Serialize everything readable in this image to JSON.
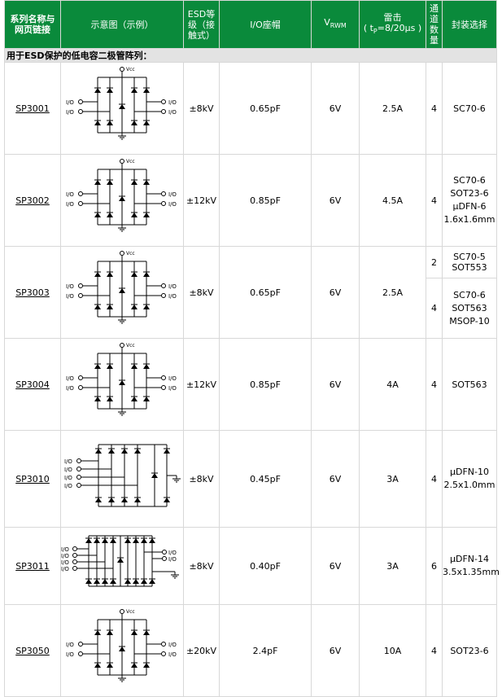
{
  "headers": {
    "series_line1": "系列名称与",
    "series_line2": "网页链接",
    "diagram": "示意图（示例）",
    "esd_line1": "ESD等",
    "esd_line2": "级（接",
    "esd_line3": "触式）",
    "io_cap": "I/O座帽",
    "vrwm_v": "V",
    "vrwm_sub": "RWM",
    "surge_line1": "雷击",
    "surge_line2_pre": "( t",
    "surge_line2_sub": "P",
    "surge_line2_post": "=8/20µs )",
    "channels_line1": "通",
    "channels_line2": "道",
    "channels_line3": "数",
    "channels_line4": "量",
    "package": "封装选择"
  },
  "section_title": "用于ESD保护的低电容二极管阵列：",
  "diagram_labels": {
    "vcc": "Vcc",
    "io": "I/O"
  },
  "rows": [
    {
      "series": "SP3001",
      "esd": "±8kV",
      "cap": "0.65pF",
      "vrwm": "6V",
      "surge": "2.5A",
      "channels": "4",
      "package": "SC70-6"
    },
    {
      "series": "SP3002",
      "esd": "±12kV",
      "cap": "0.85pF",
      "vrwm": "6V",
      "surge": "4.5A",
      "channels": "4",
      "package_line1": "SC70-6 SOT23-6",
      "package_line2": "µDFN-6",
      "package_line3": "1.6x1.6mm"
    },
    {
      "series": "SP3003",
      "esd": "±8kV",
      "cap": "0.65pF",
      "vrwm": "6V",
      "surge": "2.5A",
      "sub": [
        {
          "channels": "2",
          "package": "SC70-5 SOT553"
        },
        {
          "channels": "4",
          "package_line1": "SC70-6 SOT563",
          "package_line2": "MSOP-10"
        }
      ]
    },
    {
      "series": "SP3004",
      "esd": "±12kV",
      "cap": "0.85pF",
      "vrwm": "6V",
      "surge": "4A",
      "channels": "4",
      "package": "SOT563"
    },
    {
      "series": "SP3010",
      "esd": "±8kV",
      "cap": "0.45pF",
      "vrwm": "6V",
      "surge": "3A",
      "channels": "4",
      "package_line1": "µDFN-10",
      "package_line2": "2.5x1.0mm"
    },
    {
      "series": "SP3011",
      "esd": "±8kV",
      "cap": "0.40pF",
      "vrwm": "6V",
      "surge": "3A",
      "channels": "6",
      "package_line1": "µDFN-14",
      "package_line2": "3.5x1.35mm"
    },
    {
      "series": "SP3050",
      "esd": "±20kV",
      "cap": "2.4pF",
      "vrwm": "6V",
      "surge": "10A",
      "channels": "4",
      "package": "SOT23-6"
    }
  ]
}
